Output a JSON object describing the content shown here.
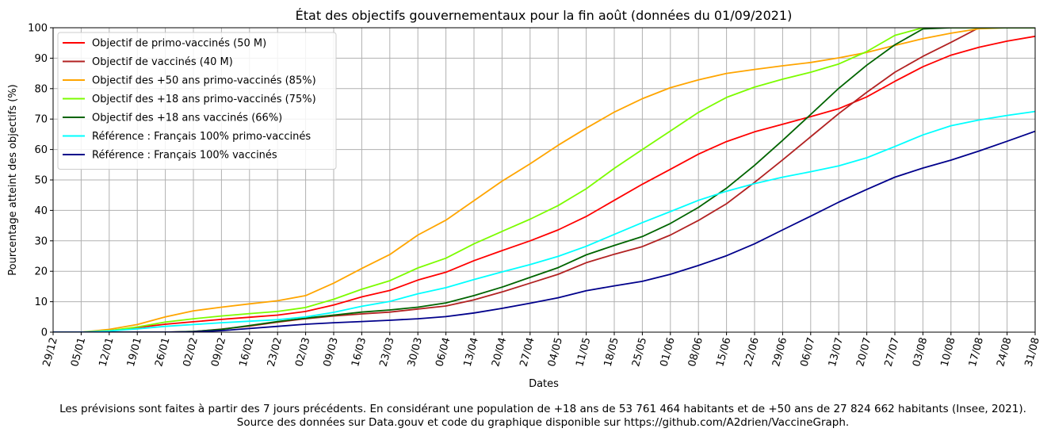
{
  "chart_data": {
    "type": "line",
    "title": "État des objectifs gouvernementaux pour la fin août (données du 01/09/2021)",
    "xlabel": "Dates",
    "ylabel": "Pourcentage atteint des objectifs (%)",
    "ylim": [
      0,
      100
    ],
    "yticks": [
      0,
      10,
      20,
      30,
      40,
      50,
      60,
      70,
      80,
      90,
      100
    ],
    "grid": true,
    "legend_position": "upper-left",
    "categories": [
      "29/12",
      "05/01",
      "12/01",
      "19/01",
      "26/01",
      "02/02",
      "09/02",
      "16/02",
      "23/02",
      "02/03",
      "09/03",
      "16/03",
      "23/03",
      "30/03",
      "06/04",
      "13/04",
      "20/04",
      "27/04",
      "04/05",
      "11/05",
      "18/05",
      "25/05",
      "01/06",
      "08/06",
      "15/06",
      "22/06",
      "29/06",
      "06/07",
      "13/07",
      "20/07",
      "27/07",
      "03/08",
      "10/08",
      "17/08",
      "24/08",
      "31/08"
    ],
    "series": [
      {
        "name": "Objectif de primo-vaccinés (50 M)",
        "color": "#ff0000",
        "values": [
          0,
          0,
          0.5,
          1.5,
          2.6,
          3.4,
          4.2,
          4.9,
          5.6,
          6.8,
          8.9,
          11.6,
          13.7,
          17.1,
          19.7,
          23.5,
          26.8,
          30.0,
          33.6,
          38.0,
          43.3,
          48.6,
          53.5,
          58.5,
          62.6,
          65.8,
          68.3,
          70.8,
          73.4,
          77.3,
          82.4,
          87.2,
          91.0,
          93.6,
          95.6,
          97.2
        ]
      },
      {
        "name": "Objectif de vaccinés (40 M)",
        "color": "#b22222",
        "values": [
          0,
          0,
          0,
          0,
          0,
          0.2,
          1.0,
          2.0,
          3.3,
          4.4,
          5.3,
          6.0,
          6.6,
          7.6,
          8.6,
          10.6,
          13.2,
          16.1,
          19.0,
          22.8,
          25.6,
          28.1,
          31.9,
          36.7,
          42.2,
          49.2,
          56.6,
          64.2,
          71.8,
          78.8,
          85.4,
          90.6,
          95.2,
          100,
          100,
          100
        ]
      },
      {
        "name": "Objectif des +50 ans primo-vaccinés (85%)",
        "color": "#ffa500",
        "values": [
          0,
          0,
          0.9,
          2.5,
          5.0,
          7.0,
          8.2,
          9.3,
          10.3,
          12.0,
          16.1,
          20.9,
          25.5,
          31.9,
          36.8,
          43.2,
          49.6,
          55.3,
          61.4,
          67.0,
          72.3,
          76.7,
          80.3,
          82.9,
          85.0,
          86.3,
          87.5,
          88.6,
          90.1,
          91.9,
          94.2,
          96.4,
          98.2,
          99.7,
          100,
          100
        ]
      },
      {
        "name": "Objectif des +18 ans primo-vaccinés (75%)",
        "color": "#7cfc00",
        "values": [
          0,
          0,
          0.5,
          1.7,
          3.3,
          4.4,
          5.3,
          6.1,
          6.8,
          8.1,
          10.8,
          14.1,
          16.9,
          21.1,
          24.3,
          29.0,
          33.1,
          37.1,
          41.6,
          47.1,
          53.8,
          60.0,
          66.1,
          72.2,
          77.1,
          80.5,
          83.1,
          85.4,
          88.1,
          92.2,
          97.5,
          100,
          100,
          100,
          100,
          100
        ]
      },
      {
        "name": "Objectif des +18 ans vaccinés (66%)",
        "color": "#006400",
        "values": [
          0,
          0,
          0,
          0,
          0,
          0.2,
          0.9,
          2.2,
          3.5,
          4.6,
          5.6,
          6.6,
          7.3,
          8.2,
          9.6,
          12.0,
          14.8,
          18.0,
          21.2,
          25.4,
          28.5,
          31.4,
          35.7,
          41.0,
          47.3,
          54.8,
          63.0,
          71.5,
          80.1,
          87.7,
          94.4,
          99.6,
          100,
          100,
          100,
          100
        ]
      },
      {
        "name": "Référence : Français 100% primo-vaccinés",
        "color": "#00ffff",
        "values": [
          0,
          0,
          0.4,
          1.1,
          1.9,
          2.5,
          3.1,
          3.6,
          4.1,
          5.0,
          6.5,
          8.5,
          10.1,
          12.6,
          14.6,
          17.3,
          19.8,
          22.2,
          24.9,
          28.2,
          32.1,
          36.0,
          39.6,
          43.3,
          46.3,
          48.8,
          50.9,
          52.7,
          54.6,
          57.3,
          61.0,
          64.8,
          67.8,
          69.7,
          71.2,
          72.5
        ]
      },
      {
        "name": "Référence : Français 100% vaccinés",
        "color": "#00008b",
        "values": [
          0,
          0,
          0,
          0,
          0,
          0.1,
          0.5,
          1.2,
          1.9,
          2.6,
          3.1,
          3.5,
          3.9,
          4.4,
          5.1,
          6.3,
          7.8,
          9.5,
          11.3,
          13.6,
          15.2,
          16.7,
          19.0,
          21.9,
          25.1,
          29.0,
          33.6,
          38.1,
          42.7,
          46.9,
          50.9,
          53.9,
          56.5,
          59.5,
          62.7,
          66.0
        ]
      }
    ]
  },
  "footnote_line1": "Les prévisions sont faites à partir des 7 jours précédents. En considérant une population de +18 ans de 53 761 464 habitants et de +50 ans de 27 824 662 habitants (Insee, 2021).",
  "footnote_line2": "Source des données sur Data.gouv et code du graphique disponible sur https://github.com/A2drien/VaccineGraph."
}
